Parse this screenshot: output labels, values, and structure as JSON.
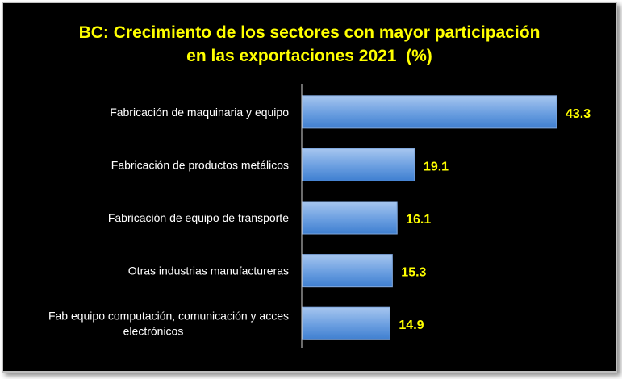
{
  "chart_data": {
    "type": "bar",
    "orientation": "horizontal",
    "title_lines": [
      "BC: Crecimiento de los sectores con mayor participación",
      "en las exportaciones 2021  (%)"
    ],
    "categories": [
      [
        "Fabricación de maquinaria y equipo"
      ],
      [
        "Fabricación de productos metálicos"
      ],
      [
        "Fabricación de equipo de transporte"
      ],
      [
        "Otras industrias manufactureras"
      ],
      [
        "Fab equipo computación, comunicación y acces",
        "electrónicos"
      ]
    ],
    "values": [
      43.3,
      19.1,
      16.1,
      15.3,
      14.9
    ],
    "data_labels": [
      "43.3",
      "19.1",
      "16.1",
      "15.3",
      "14.9"
    ],
    "xlim": [
      0,
      50
    ],
    "grid": false,
    "legend": false
  },
  "colors": {
    "background": "#000000",
    "title": "#ffff00",
    "category_text": "#ffffff",
    "value_text": "#ffff00",
    "bar_top": "#a7c6ef",
    "bar_bottom": "#3f7fd0",
    "bar_stroke": "#7ea6dc",
    "axis": "#d9d9d9"
  }
}
